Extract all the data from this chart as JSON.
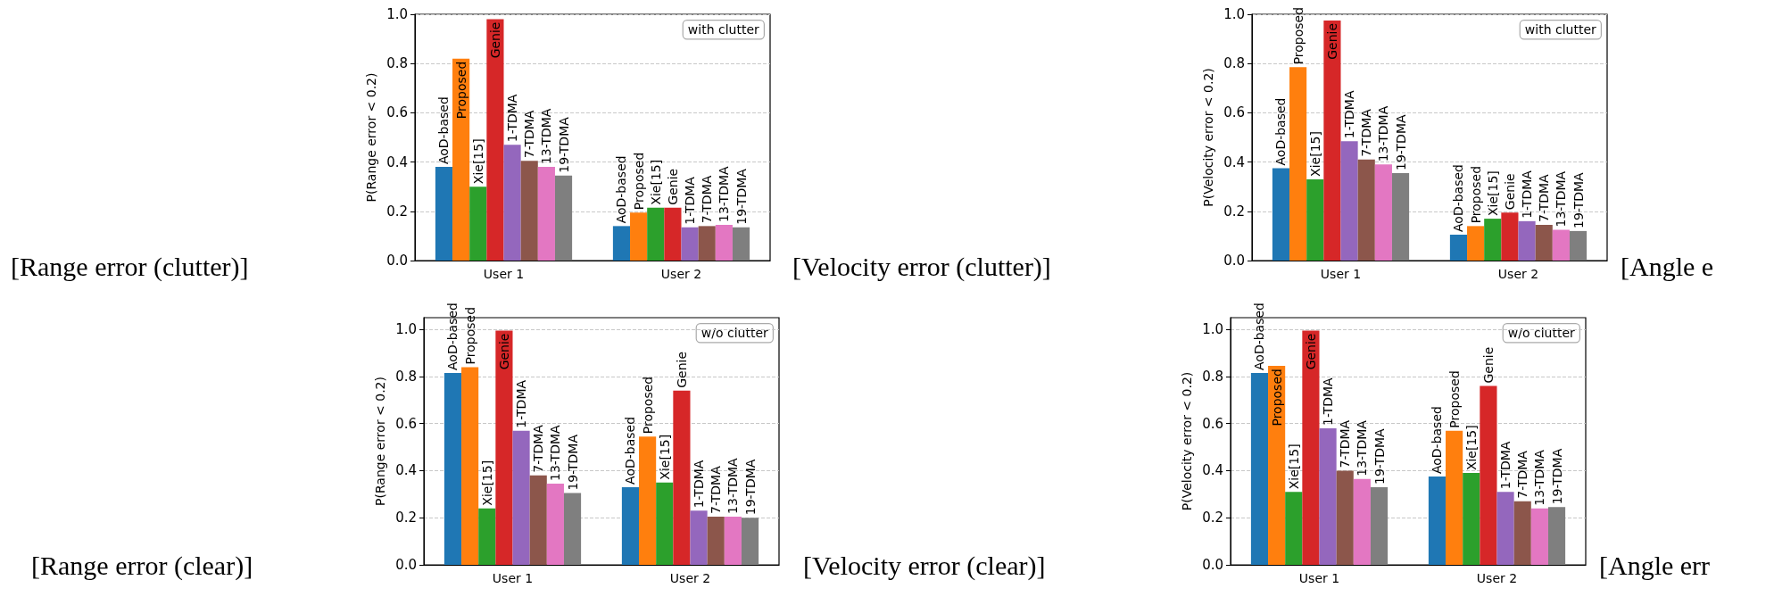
{
  "chart_data": [
    {
      "type": "bar",
      "ylabel": "P(Range error < 0.2)",
      "categories": [
        "User 1",
        "User 2"
      ],
      "ylim": [
        0,
        1.0
      ],
      "yticks": [
        {
          "value": 0,
          "label": "0.0"
        },
        {
          "value": 0.2,
          "label": "0.2"
        },
        {
          "value": 0.4,
          "label": "0.4"
        },
        {
          "value": 0.6,
          "label": "0.6"
        },
        {
          "value": 0.8,
          "label": "0.8"
        },
        {
          "value": 1.0,
          "label": "1.0"
        }
      ],
      "grid": "y",
      "legend": false,
      "annotations": [
        "with clutter",
        "[Range error (clutter)]"
      ],
      "series": [
        {
          "name": "AoD-based",
          "color": "#1f77b4",
          "values": [
            0.38,
            0.14
          ]
        },
        {
          "name": "Proposed",
          "color": "#ff7f0e",
          "values": [
            0.82,
            0.195
          ]
        },
        {
          "name": "Xie[15]",
          "color": "#2ca02c",
          "values": [
            0.3,
            0.215
          ]
        },
        {
          "name": "Genie",
          "color": "#d62728",
          "values": [
            0.98,
            0.215
          ]
        },
        {
          "name": "1-TDMA",
          "color": "#9467bd",
          "values": [
            0.47,
            0.135
          ]
        },
        {
          "name": "7-TDMA",
          "color": "#8c564b",
          "values": [
            0.405,
            0.14
          ]
        },
        {
          "name": "13-TDMA",
          "color": "#e377c2",
          "values": [
            0.38,
            0.145
          ]
        },
        {
          "name": "19-TDMA",
          "color": "#7f7f7f",
          "values": [
            0.345,
            0.135
          ]
        }
      ]
    },
    {
      "type": "bar",
      "ylabel": "P(Velocity error < 0.2)",
      "categories": [
        "User 1",
        "User 2"
      ],
      "ylim": [
        0,
        1.0
      ],
      "yticks": [
        {
          "value": 0,
          "label": "0.0"
        },
        {
          "value": 0.2,
          "label": "0.2"
        },
        {
          "value": 0.4,
          "label": "0.4"
        },
        {
          "value": 0.6,
          "label": "0.6"
        },
        {
          "value": 0.8,
          "label": "0.8"
        },
        {
          "value": 1.0,
          "label": "1.0"
        }
      ],
      "grid": "y",
      "legend": false,
      "annotations": [
        "with clutter",
        "[Velocity error (clutter)]",
        "[Angle e"
      ],
      "series": [
        {
          "name": "AoD-based",
          "color": "#1f77b4",
          "values": [
            0.375,
            0.105
          ]
        },
        {
          "name": "Proposed",
          "color": "#ff7f0e",
          "values": [
            0.785,
            0.14
          ]
        },
        {
          "name": "Xie[15]",
          "color": "#2ca02c",
          "values": [
            0.33,
            0.17
          ]
        },
        {
          "name": "Genie",
          "color": "#d62728",
          "values": [
            0.975,
            0.195
          ]
        },
        {
          "name": "1-TDMA",
          "color": "#9467bd",
          "values": [
            0.485,
            0.16
          ]
        },
        {
          "name": "7-TDMA",
          "color": "#8c564b",
          "values": [
            0.41,
            0.145
          ]
        },
        {
          "name": "13-TDMA",
          "color": "#e377c2",
          "values": [
            0.39,
            0.125
          ]
        },
        {
          "name": "19-TDMA",
          "color": "#7f7f7f",
          "values": [
            0.355,
            0.12
          ]
        }
      ]
    },
    {
      "type": "bar",
      "ylabel": "P(Range error < 0.2)",
      "categories": [
        "User 1",
        "User 2"
      ],
      "ylim": [
        0,
        1.05
      ],
      "yticks": [
        {
          "value": 0,
          "label": "0.0"
        },
        {
          "value": 0.2,
          "label": "0.2"
        },
        {
          "value": 0.4,
          "label": "0.4"
        },
        {
          "value": 0.6,
          "label": "0.6"
        },
        {
          "value": 0.8,
          "label": "0.8"
        },
        {
          "value": 1.0,
          "label": "1.0"
        }
      ],
      "grid": "y",
      "legend": false,
      "annotations": [
        "w/o clutter",
        "[Range error (clear)]"
      ],
      "series": [
        {
          "name": "AoD-based",
          "color": "#1f77b4",
          "values": [
            0.815,
            0.33
          ]
        },
        {
          "name": "Proposed",
          "color": "#ff7f0e",
          "values": [
            0.84,
            0.545
          ]
        },
        {
          "name": "Xie[15]",
          "color": "#2ca02c",
          "values": [
            0.24,
            0.35
          ]
        },
        {
          "name": "Genie",
          "color": "#d62728",
          "values": [
            0.995,
            0.74
          ]
        },
        {
          "name": "1-TDMA",
          "color": "#9467bd",
          "values": [
            0.57,
            0.23
          ]
        },
        {
          "name": "7-TDMA",
          "color": "#8c564b",
          "values": [
            0.38,
            0.205
          ]
        },
        {
          "name": "13-TDMA",
          "color": "#e377c2",
          "values": [
            0.345,
            0.205
          ]
        },
        {
          "name": "19-TDMA",
          "color": "#7f7f7f",
          "values": [
            0.305,
            0.2
          ]
        }
      ]
    },
    {
      "type": "bar",
      "ylabel": "P(Velocity error < 0.2)",
      "categories": [
        "User 1",
        "User 2"
      ],
      "ylim": [
        0,
        1.05
      ],
      "yticks": [
        {
          "value": 0,
          "label": "0.0"
        },
        {
          "value": 0.2,
          "label": "0.2"
        },
        {
          "value": 0.4,
          "label": "0.4"
        },
        {
          "value": 0.6,
          "label": "0.6"
        },
        {
          "value": 0.8,
          "label": "0.8"
        },
        {
          "value": 1.0,
          "label": "1.0"
        }
      ],
      "grid": "y",
      "legend": false,
      "annotations": [
        "w/o clutter",
        "[Velocity error (clear)]",
        "[Angle err"
      ],
      "series": [
        {
          "name": "AoD-based",
          "color": "#1f77b4",
          "values": [
            0.815,
            0.375
          ]
        },
        {
          "name": "Proposed",
          "color": "#ff7f0e",
          "values": [
            0.845,
            0.57
          ]
        },
        {
          "name": "Xie[15]",
          "color": "#2ca02c",
          "values": [
            0.31,
            0.39
          ]
        },
        {
          "name": "Genie",
          "color": "#d62728",
          "values": [
            0.995,
            0.76
          ]
        },
        {
          "name": "1-TDMA",
          "color": "#9467bd",
          "values": [
            0.58,
            0.31
          ]
        },
        {
          "name": "7-TDMA",
          "color": "#8c564b",
          "values": [
            0.4,
            0.27
          ]
        },
        {
          "name": "13-TDMA",
          "color": "#e377c2",
          "values": [
            0.365,
            0.24
          ]
        },
        {
          "name": "19-TDMA",
          "color": "#7f7f7f",
          "values": [
            0.33,
            0.245
          ]
        }
      ]
    }
  ]
}
